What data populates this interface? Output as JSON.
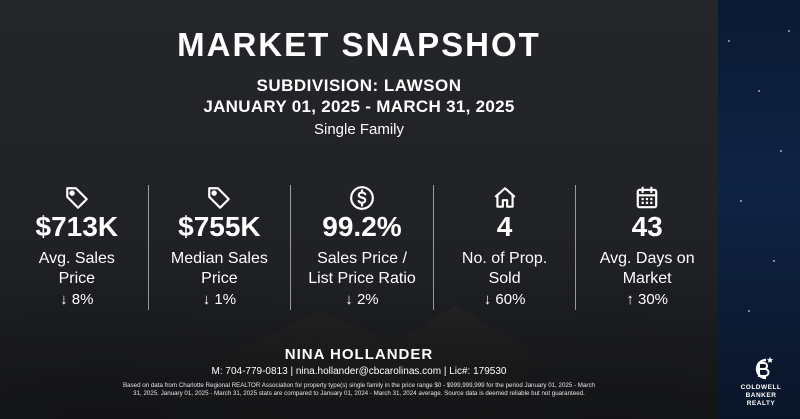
{
  "header": {
    "title": "MARKET SNAPSHOT",
    "subdivision": "SUBDIVISION: LAWSON",
    "date_range": "JANUARY 01, 2025 - MARCH 31, 2025",
    "property_type": "Single Family"
  },
  "stats": [
    {
      "icon": "price-tag-icon",
      "value": "$713K",
      "label_line1": "Avg. Sales",
      "label_line2": "Price",
      "change": "↓ 8%"
    },
    {
      "icon": "price-tag-icon",
      "value": "$755K",
      "label_line1": "Median Sales",
      "label_line2": "Price",
      "change": "↓ 1%"
    },
    {
      "icon": "dollar-circle-icon",
      "value": "99.2%",
      "label_line1": "Sales Price /",
      "label_line2": "List Price Ratio",
      "change": "↓ 2%"
    },
    {
      "icon": "house-icon",
      "value": "4",
      "label_line1": "No. of Prop.",
      "label_line2": "Sold",
      "change": "↓ 60%"
    },
    {
      "icon": "calendar-icon",
      "value": "43",
      "label_line1": "Avg. Days on",
      "label_line2": "Market",
      "change": "↑ 30%"
    }
  ],
  "footer": {
    "agent_name": "NINA HOLLANDER",
    "contact": "M: 704-779-0813 | nina.hollander@cbcarolinas.com | Lic#: 179530",
    "disclaimer": "Based on data from Charlotte Regional REALTOR Association for property type(s) single family in the price range $0 - $999,999,999 for the period January 01, 2025 - March 31, 2025. January 01, 2025 - March 31, 2025 stats are compared to January 01, 2024 - March 31, 2024 average. Source data is deemed reliable but not guaranteed."
  },
  "logo": {
    "line1": "COLDWELL",
    "line2": "BANKER",
    "line3": "REALTY"
  }
}
